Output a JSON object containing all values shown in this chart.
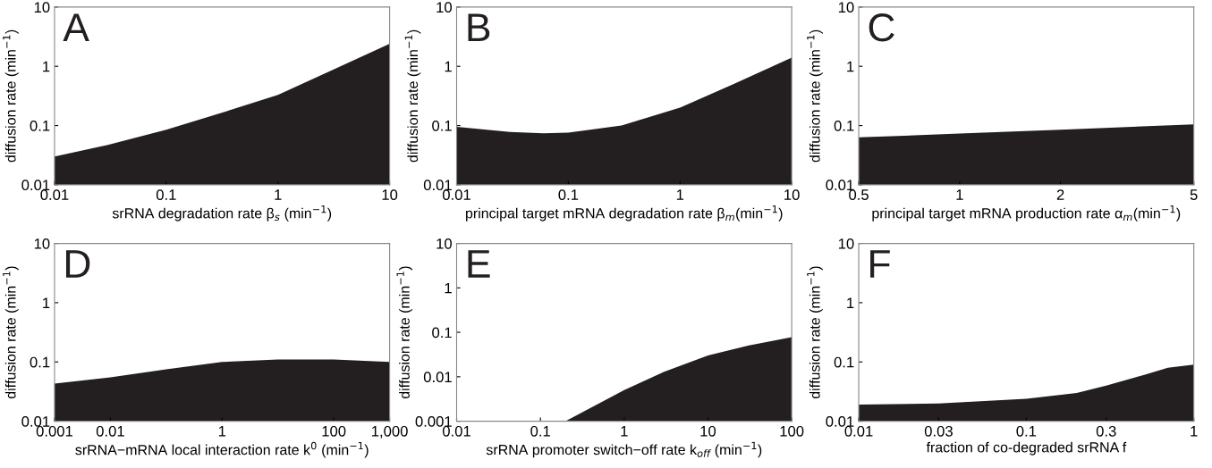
{
  "chart_data": [
    {
      "type": "area",
      "title": "A",
      "xlabel": "srRNA degradation rate β$_{s}$ (min$^{−1}$)",
      "ylabel": "diffusion rate (min$^{−1}$)",
      "log": "xy",
      "color": "#231f20",
      "x": [
        0.01,
        0.03,
        0.1,
        0.3,
        1,
        3,
        10
      ],
      "values": [
        0.03,
        0.047,
        0.085,
        0.16,
        0.33,
        0.85,
        2.4
      ],
      "xlim": [
        0.01,
        10
      ],
      "xticks": [
        0.01,
        0.1,
        1,
        10
      ],
      "ylim": [
        0.01,
        10
      ],
      "yticks": [
        0.01,
        0.1,
        1,
        10
      ]
    },
    {
      "type": "area",
      "title": "B",
      "xlabel": "principal target mRNA degradation rate β$_{m}$(min$^{−1}$)",
      "ylabel": "diffusion rate (min$^{−1}$)",
      "log": "xy",
      "color": "#231f20",
      "x": [
        0.01,
        0.03,
        0.06,
        0.1,
        0.3,
        1,
        3,
        10
      ],
      "values": [
        0.095,
        0.078,
        0.074,
        0.076,
        0.1,
        0.2,
        0.5,
        1.4
      ],
      "xlim": [
        0.01,
        10
      ],
      "xticks": [
        0.01,
        0.1,
        1,
        10
      ],
      "ylim": [
        0.01,
        10
      ],
      "yticks": [
        0.01,
        0.1,
        1,
        10
      ]
    },
    {
      "type": "area",
      "title": "C",
      "xlabel": "principal target mRNA production rate α$_{m}$(min$^{−1}$)",
      "ylabel": "diffusion rate (min$^{−1}$)",
      "log": "xy",
      "color": "#231f20",
      "x": [
        0.5,
        1,
        2,
        5
      ],
      "values": [
        0.063,
        0.073,
        0.085,
        0.105
      ],
      "xlim": [
        0.5,
        5
      ],
      "xticks": [
        0.5,
        1,
        2,
        5
      ],
      "ylim": [
        0.01,
        10
      ],
      "yticks": [
        0.01,
        0.1,
        1,
        10
      ]
    },
    {
      "type": "area",
      "title": "D",
      "xlabel": "srRNA−mRNA local interaction rate k$^{0}$ (min$^{−1}$)",
      "ylabel": "diffusion rate (min$^{−1}$)",
      "log": "xy",
      "color": "#231f20",
      "x": [
        0.001,
        0.01,
        0.1,
        1,
        10,
        100,
        1000
      ],
      "values": [
        0.043,
        0.055,
        0.075,
        0.1,
        0.11,
        0.11,
        0.1
      ],
      "xlim": [
        0.001,
        1000
      ],
      "xticks": [
        0.001,
        0.01,
        1,
        100,
        {
          "value": 1000,
          "label": "1,000"
        }
      ],
      "ylim": [
        0.01,
        10
      ],
      "yticks": [
        0.01,
        0.1,
        1,
        10
      ]
    },
    {
      "type": "area",
      "title": "E",
      "xlabel": "srRNA promoter switch−off rate k$_{off}$ (min$^{−1}$)",
      "ylabel": "diffusion rate (min$^{−1}$)",
      "log": "xy",
      "color": "#231f20",
      "x": [
        0.2,
        1,
        3,
        10,
        30,
        100
      ],
      "values": [
        0.001,
        0.005,
        0.013,
        0.03,
        0.05,
        0.078
      ],
      "xlim": [
        0.01,
        100
      ],
      "xticks": [
        0.01,
        0.1,
        1,
        10,
        100
      ],
      "ylim": [
        0.001,
        10
      ],
      "yticks": [
        0.001,
        0.01,
        0.1,
        1,
        10
      ]
    },
    {
      "type": "area",
      "title": "F",
      "xlabel": "fraction of co-degraded srRNA f",
      "ylabel": "diffusion rate (min$^{−1}$)",
      "log": "xy",
      "color": "#231f20",
      "x": [
        0.01,
        0.03,
        0.1,
        0.2,
        0.3,
        0.5,
        0.7,
        1
      ],
      "values": [
        0.019,
        0.02,
        0.024,
        0.03,
        0.04,
        0.06,
        0.08,
        0.09
      ],
      "xlim": [
        0.01,
        1
      ],
      "xticks": [
        0.01,
        0.03,
        0.1,
        0.3,
        1
      ],
      "ylim": [
        0.01,
        10
      ],
      "yticks": [
        0.01,
        0.1,
        1,
        10
      ]
    }
  ]
}
